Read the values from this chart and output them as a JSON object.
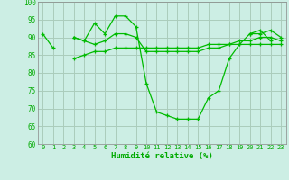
{
  "background_color": "#cceee4",
  "grid_color": "#aaccbb",
  "line_color": "#00bb00",
  "xlabel": "Humidité relative (%)",
  "xlabel_color": "#00aa00",
  "tick_color": "#00aa00",
  "ylim": [
    60,
    100
  ],
  "xlim": [
    -0.5,
    23.5
  ],
  "yticks": [
    60,
    65,
    70,
    75,
    80,
    85,
    90,
    95,
    100
  ],
  "xticks": [
    0,
    1,
    2,
    3,
    4,
    5,
    6,
    7,
    8,
    9,
    10,
    11,
    12,
    13,
    14,
    15,
    16,
    17,
    18,
    19,
    20,
    21,
    22,
    23
  ],
  "series": [
    [
      91,
      87,
      null,
      90,
      89,
      94,
      91,
      96,
      96,
      93,
      77,
      69,
      68,
      67,
      67,
      67,
      73,
      75,
      84,
      88,
      91,
      92,
      89,
      null
    ],
    [
      null,
      null,
      null,
      90,
      89,
      88,
      89,
      91,
      91,
      90,
      86,
      86,
      86,
      86,
      86,
      86,
      87,
      87,
      88,
      89,
      89,
      90,
      90,
      89
    ],
    [
      null,
      null,
      null,
      84,
      85,
      86,
      86,
      87,
      87,
      87,
      87,
      87,
      87,
      87,
      87,
      87,
      88,
      88,
      88,
      88,
      88,
      88,
      88,
      88
    ],
    [
      null,
      null,
      null,
      null,
      null,
      null,
      null,
      null,
      null,
      null,
      null,
      null,
      null,
      null,
      null,
      null,
      null,
      null,
      null,
      null,
      91,
      91,
      92,
      90
    ]
  ]
}
